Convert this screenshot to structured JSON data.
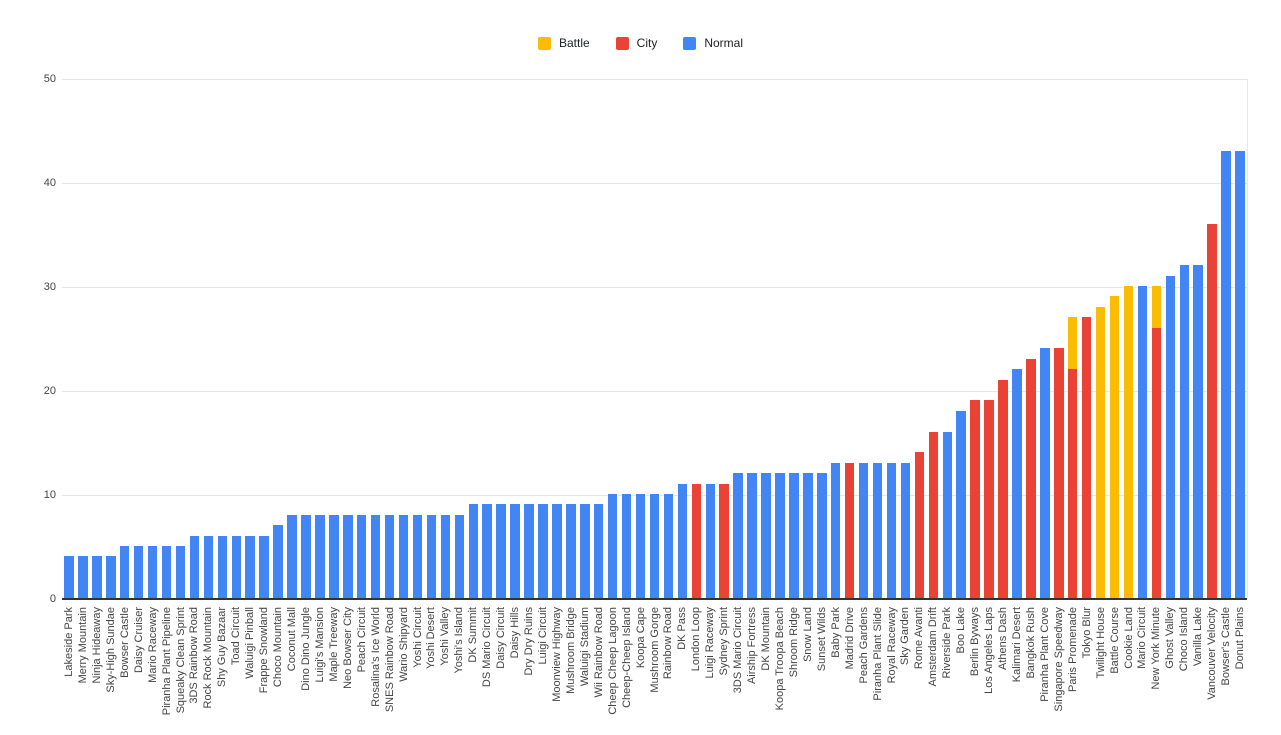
{
  "legend": [
    {
      "label": "Battle",
      "color": "#FBBC04"
    },
    {
      "label": "City",
      "color": "#EA4335"
    },
    {
      "label": "Normal",
      "color": "#4285F4"
    }
  ],
  "chart_data": {
    "type": "bar",
    "stacked": true,
    "title": "",
    "xlabel": "",
    "ylabel": "",
    "ylim": [
      0,
      50
    ],
    "y_ticks": [
      0,
      10,
      20,
      30,
      40,
      50
    ],
    "grid": true,
    "legend_position": "top-center",
    "series_names": [
      "Battle",
      "City",
      "Normal"
    ],
    "series_colors": {
      "Battle": "#FBBC04",
      "City": "#EA4335",
      "Normal": "#4285F4"
    },
    "bars": [
      {
        "label": "Lakeside Park",
        "segments": [
          {
            "series": "Normal",
            "value": 4
          }
        ]
      },
      {
        "label": "Merry Mountain",
        "segments": [
          {
            "series": "Normal",
            "value": 4
          }
        ]
      },
      {
        "label": "Ninja Hideaway",
        "segments": [
          {
            "series": "Normal",
            "value": 4
          }
        ]
      },
      {
        "label": "Sky-High Sundae",
        "segments": [
          {
            "series": "Normal",
            "value": 4
          }
        ]
      },
      {
        "label": "Bowser Castle",
        "segments": [
          {
            "series": "Normal",
            "value": 5
          }
        ]
      },
      {
        "label": "Daisy Cruiser",
        "segments": [
          {
            "series": "Normal",
            "value": 5
          }
        ]
      },
      {
        "label": "Mario Raceway",
        "segments": [
          {
            "series": "Normal",
            "value": 5
          }
        ]
      },
      {
        "label": "Piranha Plant Pipeline",
        "segments": [
          {
            "series": "Normal",
            "value": 5
          }
        ]
      },
      {
        "label": "Squeaky Clean Sprint",
        "segments": [
          {
            "series": "Normal",
            "value": 5
          }
        ]
      },
      {
        "label": "3DS Rainbow Road",
        "segments": [
          {
            "series": "Normal",
            "value": 6
          }
        ]
      },
      {
        "label": "Rock Rock Mountain",
        "segments": [
          {
            "series": "Normal",
            "value": 6
          }
        ]
      },
      {
        "label": "Shy Guy Bazaar",
        "segments": [
          {
            "series": "Normal",
            "value": 6
          }
        ]
      },
      {
        "label": "Toad Circuit",
        "segments": [
          {
            "series": "Normal",
            "value": 6
          }
        ]
      },
      {
        "label": "Waluigi Pinball",
        "segments": [
          {
            "series": "Normal",
            "value": 6
          }
        ]
      },
      {
        "label": "Frappe Snowland",
        "segments": [
          {
            "series": "Normal",
            "value": 6
          }
        ]
      },
      {
        "label": "Choco Mountain",
        "segments": [
          {
            "series": "Normal",
            "value": 7
          }
        ]
      },
      {
        "label": "Coconut Mall",
        "segments": [
          {
            "series": "Normal",
            "value": 8
          }
        ]
      },
      {
        "label": "Dino Dino Jungle",
        "segments": [
          {
            "series": "Normal",
            "value": 8
          }
        ]
      },
      {
        "label": "Luigi's Mansion",
        "segments": [
          {
            "series": "Normal",
            "value": 8
          }
        ]
      },
      {
        "label": "Maple Treeway",
        "segments": [
          {
            "series": "Normal",
            "value": 8
          }
        ]
      },
      {
        "label": "Neo Bowser City",
        "segments": [
          {
            "series": "Normal",
            "value": 8
          }
        ]
      },
      {
        "label": "Peach Circuit",
        "segments": [
          {
            "series": "Normal",
            "value": 8
          }
        ]
      },
      {
        "label": "Rosalina's Ice World",
        "segments": [
          {
            "series": "Normal",
            "value": 8
          }
        ]
      },
      {
        "label": "SNES Rainbow Road",
        "segments": [
          {
            "series": "Normal",
            "value": 8
          }
        ]
      },
      {
        "label": "Wario Shipyard",
        "segments": [
          {
            "series": "Normal",
            "value": 8
          }
        ]
      },
      {
        "label": "Yoshi Circuit",
        "segments": [
          {
            "series": "Normal",
            "value": 8
          }
        ]
      },
      {
        "label": "Yoshi Desert",
        "segments": [
          {
            "series": "Normal",
            "value": 8
          }
        ]
      },
      {
        "label": "Yoshi Valley",
        "segments": [
          {
            "series": "Normal",
            "value": 8
          }
        ]
      },
      {
        "label": "Yoshi's Island",
        "segments": [
          {
            "series": "Normal",
            "value": 8
          }
        ]
      },
      {
        "label": "DK Summit",
        "segments": [
          {
            "series": "Normal",
            "value": 9
          }
        ]
      },
      {
        "label": "DS Mario Circuit",
        "segments": [
          {
            "series": "Normal",
            "value": 9
          }
        ]
      },
      {
        "label": "Daisy Circuit",
        "segments": [
          {
            "series": "Normal",
            "value": 9
          }
        ]
      },
      {
        "label": "Daisy Hills",
        "segments": [
          {
            "series": "Normal",
            "value": 9
          }
        ]
      },
      {
        "label": "Dry Dry Ruins",
        "segments": [
          {
            "series": "Normal",
            "value": 9
          }
        ]
      },
      {
        "label": "Luigi Circuit",
        "segments": [
          {
            "series": "Normal",
            "value": 9
          }
        ]
      },
      {
        "label": "Moonview Highway",
        "segments": [
          {
            "series": "Normal",
            "value": 9
          }
        ]
      },
      {
        "label": "Mushroom Bridge",
        "segments": [
          {
            "series": "Normal",
            "value": 9
          }
        ]
      },
      {
        "label": "Waluigi Stadium",
        "segments": [
          {
            "series": "Normal",
            "value": 9
          }
        ]
      },
      {
        "label": "Wii Rainbow Road",
        "segments": [
          {
            "series": "Normal",
            "value": 9
          }
        ]
      },
      {
        "label": "Cheep Cheep Lagoon",
        "segments": [
          {
            "series": "Normal",
            "value": 10
          }
        ]
      },
      {
        "label": "Cheep-Cheep Island",
        "segments": [
          {
            "series": "Normal",
            "value": 10
          }
        ]
      },
      {
        "label": "Koopa Cape",
        "segments": [
          {
            "series": "Normal",
            "value": 10
          }
        ]
      },
      {
        "label": "Mushroom Gorge",
        "segments": [
          {
            "series": "Normal",
            "value": 10
          }
        ]
      },
      {
        "label": "Rainbow Road",
        "segments": [
          {
            "series": "Normal",
            "value": 10
          }
        ]
      },
      {
        "label": "DK Pass",
        "segments": [
          {
            "series": "Normal",
            "value": 11
          }
        ]
      },
      {
        "label": "London Loop",
        "segments": [
          {
            "series": "City",
            "value": 11
          }
        ]
      },
      {
        "label": "Luigi Raceway",
        "segments": [
          {
            "series": "Normal",
            "value": 11
          }
        ]
      },
      {
        "label": "Sydney Sprint",
        "segments": [
          {
            "series": "City",
            "value": 11
          }
        ]
      },
      {
        "label": "3DS Mario Circuit",
        "segments": [
          {
            "series": "Normal",
            "value": 12
          }
        ]
      },
      {
        "label": "Airship Fortress",
        "segments": [
          {
            "series": "Normal",
            "value": 12
          }
        ]
      },
      {
        "label": "DK Mountain",
        "segments": [
          {
            "series": "Normal",
            "value": 12
          }
        ]
      },
      {
        "label": "Koopa Troopa Beach",
        "segments": [
          {
            "series": "Normal",
            "value": 12
          }
        ]
      },
      {
        "label": "Shroom Ridge",
        "segments": [
          {
            "series": "Normal",
            "value": 12
          }
        ]
      },
      {
        "label": "Snow Land",
        "segments": [
          {
            "series": "Normal",
            "value": 12
          }
        ]
      },
      {
        "label": "Sunset Wilds",
        "segments": [
          {
            "series": "Normal",
            "value": 12
          }
        ]
      },
      {
        "label": "Baby Park",
        "segments": [
          {
            "series": "Normal",
            "value": 13
          }
        ]
      },
      {
        "label": "Madrid Drive",
        "segments": [
          {
            "series": "City",
            "value": 13
          }
        ]
      },
      {
        "label": "Peach Gardens",
        "segments": [
          {
            "series": "Normal",
            "value": 13
          }
        ]
      },
      {
        "label": "Piranha Plant Slide",
        "segments": [
          {
            "series": "Normal",
            "value": 13
          }
        ]
      },
      {
        "label": "Royal Raceway",
        "segments": [
          {
            "series": "Normal",
            "value": 13
          }
        ]
      },
      {
        "label": "Sky Garden",
        "segments": [
          {
            "series": "Normal",
            "value": 13
          }
        ]
      },
      {
        "label": "Rome Avanti",
        "segments": [
          {
            "series": "City",
            "value": 14
          }
        ]
      },
      {
        "label": "Amsterdam Drift",
        "segments": [
          {
            "series": "City",
            "value": 16
          }
        ]
      },
      {
        "label": "Riverside Park",
        "segments": [
          {
            "series": "Normal",
            "value": 16
          }
        ]
      },
      {
        "label": "Boo Lake",
        "segments": [
          {
            "series": "Normal",
            "value": 18
          }
        ]
      },
      {
        "label": "Berlin Byways",
        "segments": [
          {
            "series": "City",
            "value": 19
          }
        ]
      },
      {
        "label": "Los Angeles Laps",
        "segments": [
          {
            "series": "City",
            "value": 19
          }
        ]
      },
      {
        "label": "Athens Dash",
        "segments": [
          {
            "series": "City",
            "value": 21
          }
        ]
      },
      {
        "label": "Kalimari Desert",
        "segments": [
          {
            "series": "Normal",
            "value": 22
          }
        ]
      },
      {
        "label": "Bangkok Rush",
        "segments": [
          {
            "series": "City",
            "value": 23
          }
        ]
      },
      {
        "label": "Piranha Plant Cove",
        "segments": [
          {
            "series": "Normal",
            "value": 24
          }
        ]
      },
      {
        "label": "Singapore Speedway",
        "segments": [
          {
            "series": "City",
            "value": 24
          }
        ]
      },
      {
        "label": "Paris Promenade",
        "segments": [
          {
            "series": "City",
            "value": 22
          },
          {
            "series": "Battle",
            "value": 5
          }
        ]
      },
      {
        "label": "Tokyo Blur",
        "segments": [
          {
            "series": "City",
            "value": 27
          }
        ]
      },
      {
        "label": "Twilight House",
        "segments": [
          {
            "series": "Battle",
            "value": 28
          }
        ]
      },
      {
        "label": "Battle Course",
        "segments": [
          {
            "series": "Battle",
            "value": 29
          }
        ]
      },
      {
        "label": "Cookie Land",
        "segments": [
          {
            "series": "Battle",
            "value": 30
          }
        ]
      },
      {
        "label": "Mario Circuit",
        "segments": [
          {
            "series": "Normal",
            "value": 30
          }
        ]
      },
      {
        "label": "New York Minute",
        "segments": [
          {
            "series": "City",
            "value": 26
          },
          {
            "series": "Battle",
            "value": 4
          }
        ]
      },
      {
        "label": "Ghost Valley",
        "segments": [
          {
            "series": "Normal",
            "value": 31
          }
        ]
      },
      {
        "label": "Choco Island",
        "segments": [
          {
            "series": "Normal",
            "value": 32
          }
        ]
      },
      {
        "label": "Vanilla Lake",
        "segments": [
          {
            "series": "Normal",
            "value": 32
          }
        ]
      },
      {
        "label": "Vancouver Velocity",
        "segments": [
          {
            "series": "City",
            "value": 36
          }
        ]
      },
      {
        "label": "Bowser's Castle",
        "segments": [
          {
            "series": "Normal",
            "value": 43
          }
        ]
      },
      {
        "label": "Donut Plains",
        "segments": [
          {
            "series": "Normal",
            "value": 43
          }
        ]
      }
    ]
  }
}
